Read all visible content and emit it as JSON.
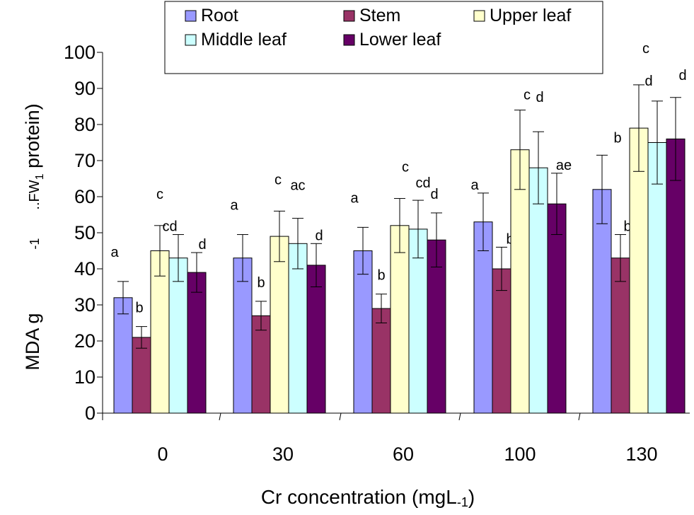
{
  "chart_data": {
    "type": "bar",
    "categories": [
      "0",
      "30",
      "60",
      "100",
      "130"
    ],
    "series": [
      {
        "name": "Root",
        "color": "#9999ff",
        "values": [
          32,
          43,
          45,
          53,
          62
        ],
        "errors": [
          4.5,
          6.5,
          6.5,
          8,
          9.5
        ]
      },
      {
        "name": "Stem",
        "color": "#993366",
        "values": [
          21,
          27,
          29,
          40,
          43
        ],
        "errors": [
          3,
          4,
          4,
          6,
          6.5
        ]
      },
      {
        "name": "Upper leaf",
        "color": "#ffffcc",
        "values": [
          45,
          49,
          52,
          73,
          79
        ],
        "errors": [
          7,
          7,
          7.5,
          11,
          12
        ]
      },
      {
        "name": "Middle leaf",
        "color": "#ccffff",
        "values": [
          43,
          47,
          51,
          68,
          75
        ],
        "errors": [
          6.5,
          7,
          8,
          10,
          11.5
        ]
      },
      {
        "name": "Lower leaf",
        "color": "#660066",
        "values": [
          39,
          41,
          48,
          58,
          76
        ],
        "errors": [
          5.5,
          6,
          7.5,
          8.5,
          11.5
        ]
      }
    ],
    "significance_letters": [
      [
        "a",
        "b",
        "c",
        "cd",
        "d"
      ],
      [
        "a",
        "b",
        "c",
        "ac",
        "d"
      ],
      [
        "a",
        "b",
        "c",
        "cd",
        "d"
      ],
      [
        "a",
        "b",
        "c",
        "d",
        "ae"
      ],
      [
        "b",
        "b",
        "c",
        "d",
        "d"
      ]
    ],
    "ylabel_parts": [
      "MDA g",
      "-1",
      "..FW",
      "1",
      " protein)"
    ],
    "xlabel": "Cr concentration (mgL",
    "xlabel_sub": "-1",
    "xlabel_end": ")",
    "ylim": [
      0,
      100
    ],
    "yticks": [
      0,
      10,
      20,
      30,
      40,
      50,
      60,
      70,
      80,
      90,
      100
    ],
    "grid": false,
    "legend_position": "top"
  }
}
